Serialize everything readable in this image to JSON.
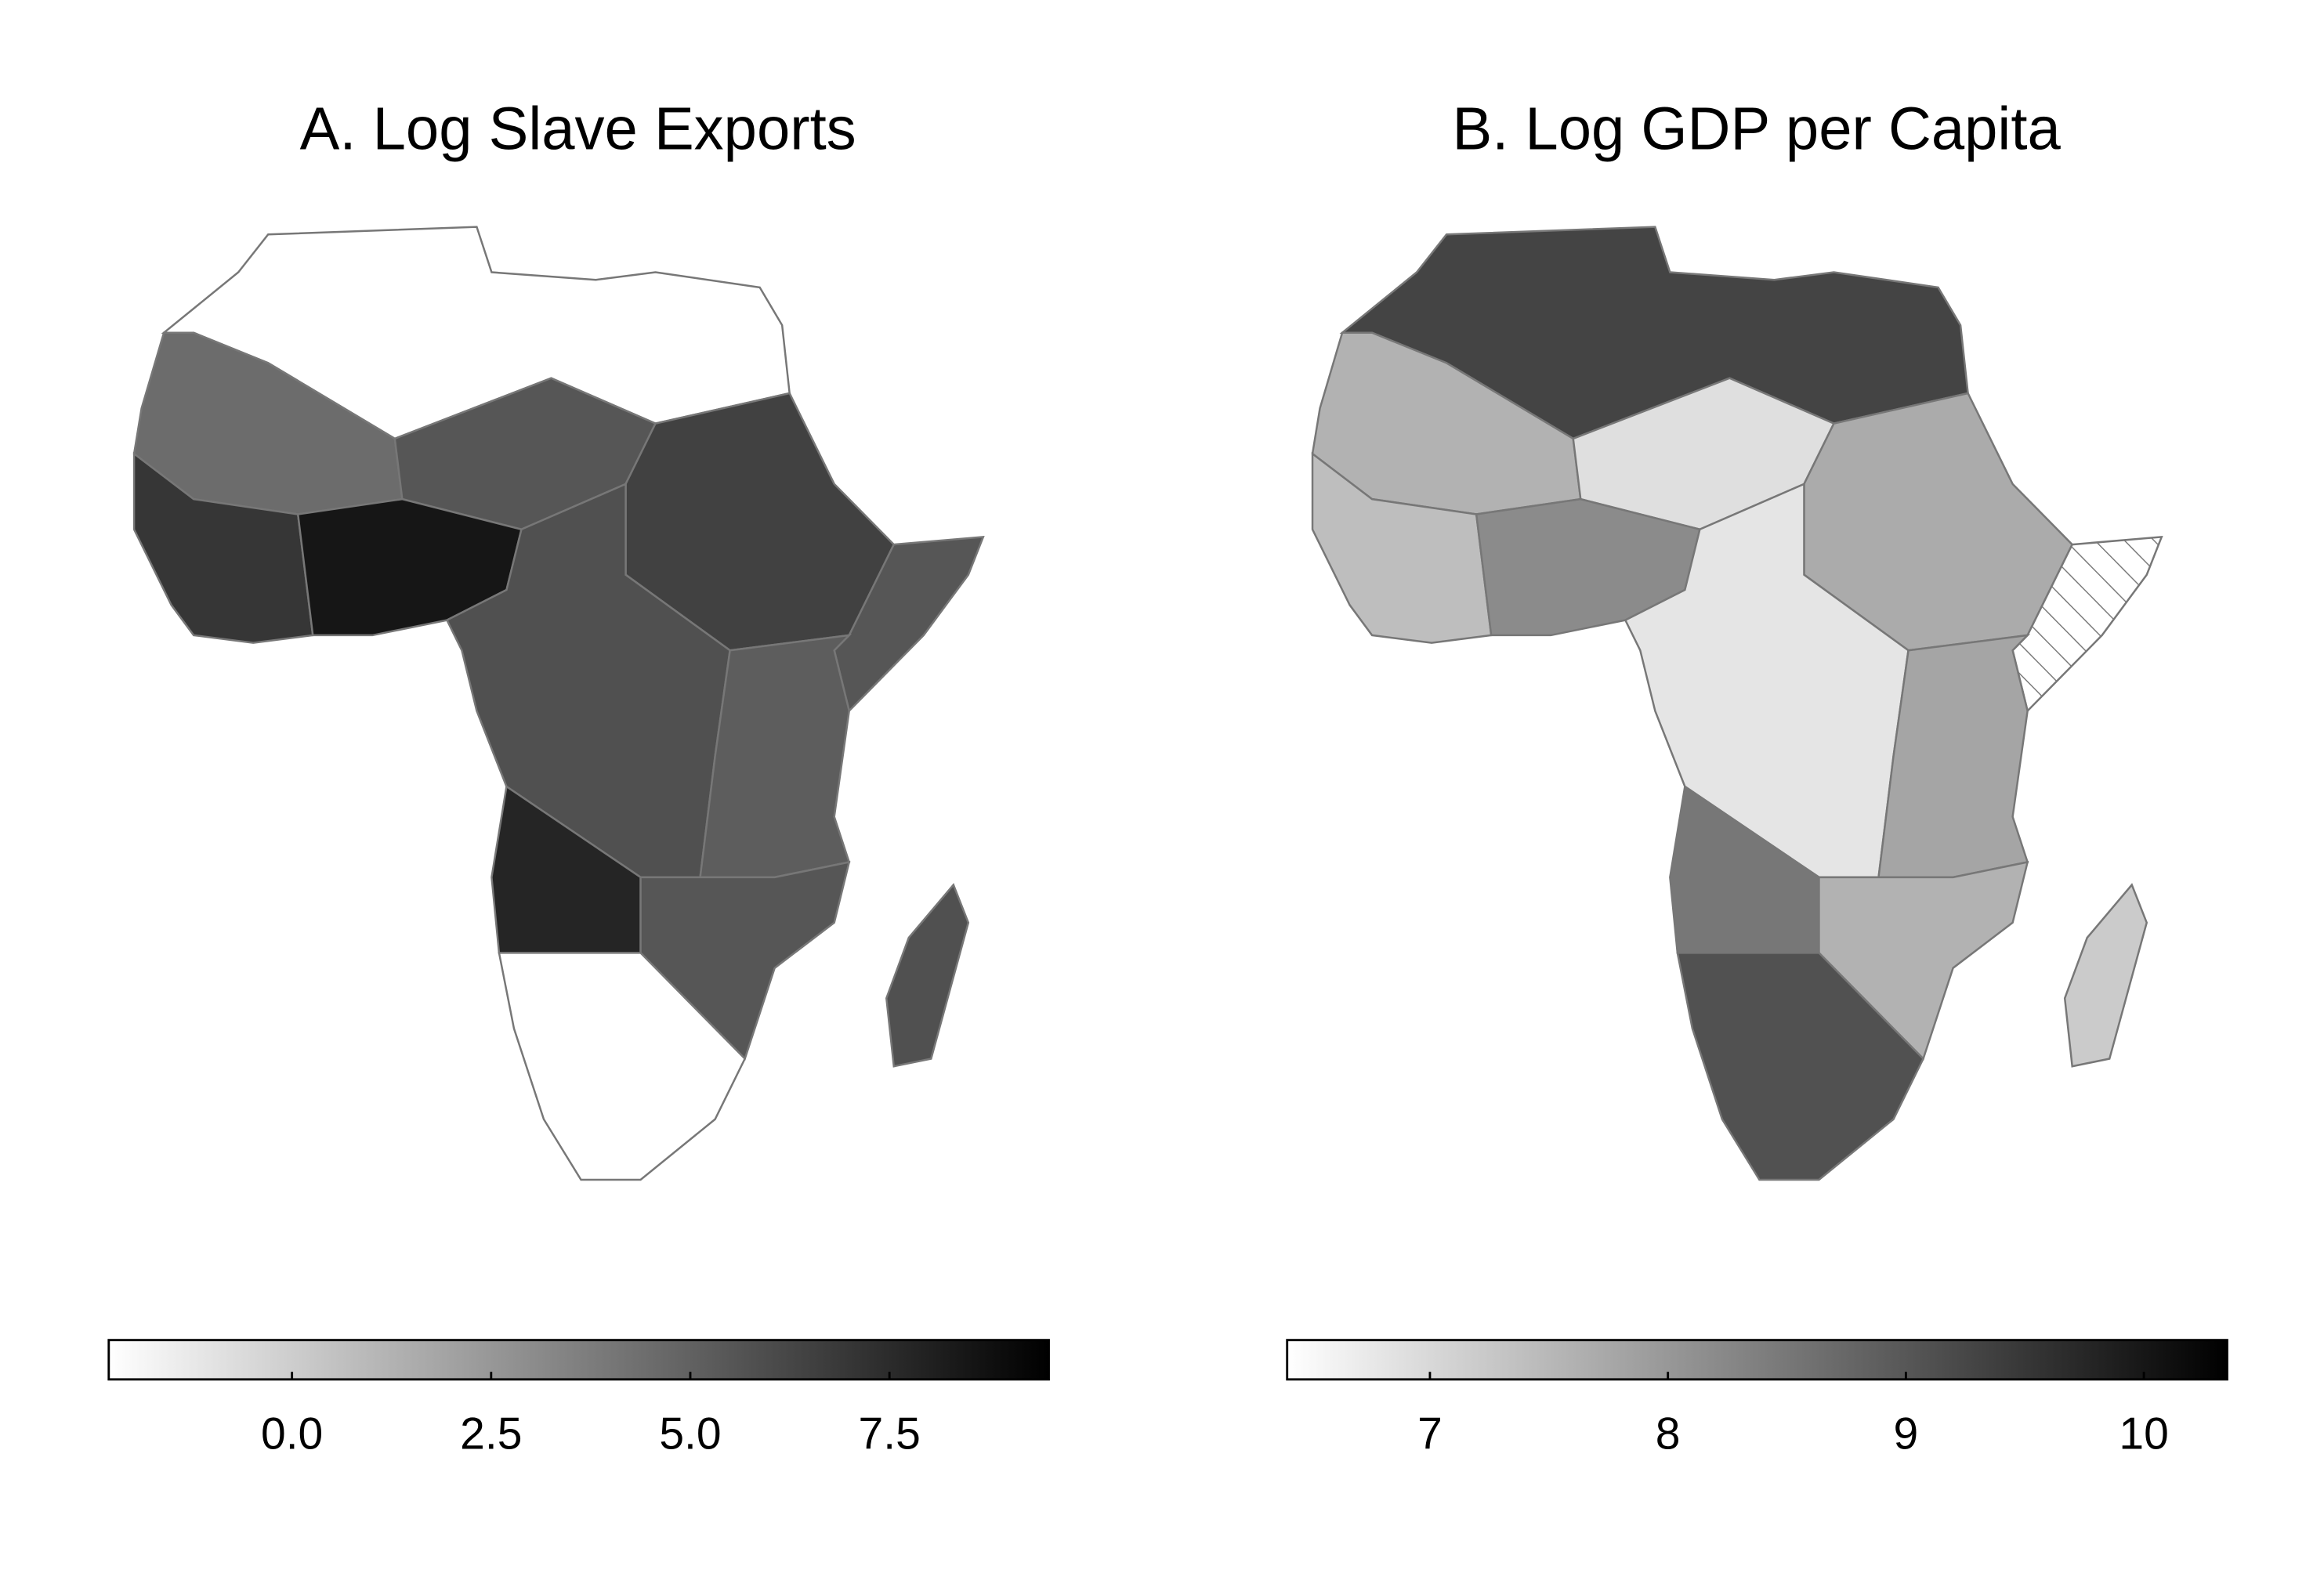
{
  "chart_data": [
    {
      "type": "choropleth",
      "title": "A. Log Slave Exports",
      "values": [
        -2.3,
        4.5,
        5.5,
        6.5,
        5.5,
        7,
        8.5,
        5.8,
        5.2,
        7.8,
        5.5,
        -2.3,
        5.8
      ],
      "zlim": [
        -2.3,
        9.5
      ],
      "zticks": [
        {
          "value": 0,
          "label": "0.0"
        },
        2.5,
        {
          "value": 5,
          "label": "5.0"
        },
        7.5
      ],
      "colormap": [
        "#ffffff",
        "#000000"
      ]
    },
    {
      "type": "choropleth",
      "title": "B. Log GDP per Capita",
      "values": [
        9.3,
        7.6,
        6.9,
        7.7,
        null,
        7.4,
        8.2,
        6.8,
        7.8,
        8.5,
        7.6,
        9.1,
        7.2
      ],
      "zlim": [
        6.4,
        10.35
      ],
      "zticks": [
        7,
        8,
        9,
        10
      ],
      "colormap": [
        "#ffffff",
        "#000000"
      ]
    }
  ]
}
